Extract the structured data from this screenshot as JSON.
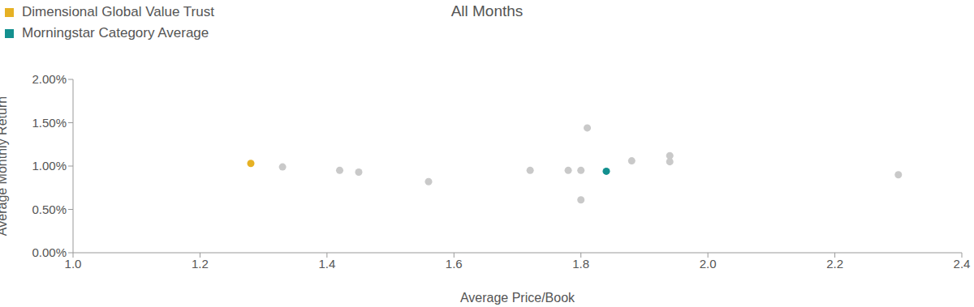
{
  "chart_data": {
    "type": "scatter",
    "title": "All Months",
    "x_label": "Average Price/Book",
    "y_label": "Average Monthly Return",
    "xlim": [
      1.0,
      2.4
    ],
    "xticks": [
      {
        "value": 1.0,
        "label": "1.0"
      },
      1.2,
      1.4,
      1.6,
      1.8,
      {
        "value": 2.0,
        "label": "2.0"
      },
      2.2,
      2.4
    ],
    "ylim": [
      0,
      2.0
    ],
    "yticks": [
      {
        "value": 0,
        "label": "0.00%"
      },
      {
        "value": 0.5,
        "label": "0.50%"
      },
      {
        "value": 1.0,
        "label": "1.00%"
      },
      {
        "value": 1.5,
        "label": "1.50%"
      },
      {
        "value": 2.0,
        "label": "2.00%"
      }
    ],
    "grid": false,
    "legend": "top-left",
    "series": [
      {
        "color": "#c9c9c9",
        "x": [
          1.33,
          1.42,
          1.45,
          1.56,
          1.72,
          1.78,
          1.8,
          1.81,
          1.8,
          1.88,
          1.94,
          1.94,
          2.3
        ],
        "values": [
          0.99,
          0.95,
          0.93,
          0.82,
          0.95,
          0.95,
          0.95,
          1.44,
          0.61,
          1.06,
          1.12,
          1.05,
          0.9
        ]
      },
      {
        "name": "Morningstar Category Average",
        "color": "#13908f",
        "x": [
          1.84
        ],
        "values": [
          0.94
        ]
      },
      {
        "name": "Dimensional Global Value Trust",
        "color": "#e6b124",
        "x": [
          1.28
        ],
        "values": [
          1.03
        ]
      }
    ]
  }
}
